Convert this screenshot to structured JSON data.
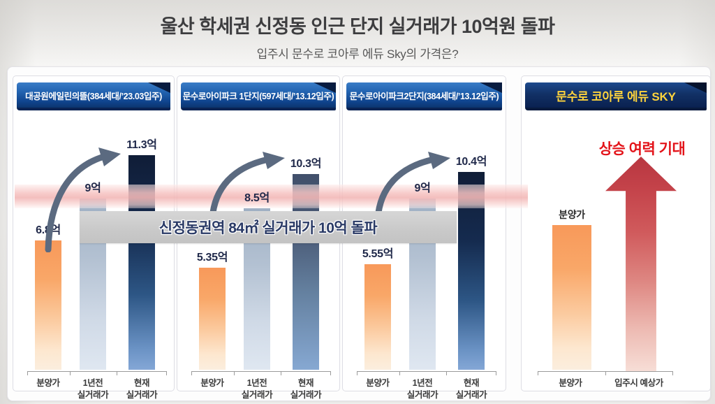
{
  "page": {
    "title": "울산 학세권 신정동 인근 단지 실거래가 10억원 돌파",
    "subtitle": "입주시 문수로 코아루 에듀 Sky의 가격은?"
  },
  "banner": {
    "text": "신정동권역 84㎡ 실거래가 10억 돌파"
  },
  "colors": {
    "ribbon_blue": "#1c5aa8",
    "ribbon_navy": "#0a2150",
    "ribbon_text": "#ffffff",
    "sky_header_text": "#ffd43c",
    "bar_orange": "#f8995a",
    "bar_lightblue": "#9fb0c4",
    "bar_navy": "#14294d",
    "band_pink": "#f3b9b8",
    "banner_gray": "#c9c9c9",
    "banner_text": "#2a3a66",
    "swoosh_arrow_gray": "#5b6a80",
    "up_arrow_red": "#c4434a",
    "rise_text_red": "#e31319"
  },
  "panels": [
    {
      "header": "대공원에일린의뜰(384세대/’23.03입주)",
      "bars": [
        {
          "value_label": "6.8억",
          "category": "분양가"
        },
        {
          "value_label": "9억",
          "category": "1년전\n실거래가"
        },
        {
          "value_label": "11.3억",
          "category": "현재\n실거래가"
        }
      ]
    },
    {
      "header": "문수로아이파크 1단지(597세대/’13.12입주)",
      "bars": [
        {
          "value_label": "5.35억",
          "category": "분양가"
        },
        {
          "value_label": "8.5억",
          "category": "1년전\n실거래가"
        },
        {
          "value_label": "10.3억",
          "category": "현재\n실거래가"
        }
      ]
    },
    {
      "header": "문수로아이파크2단지(384세대/’13.12입주)",
      "bars": [
        {
          "value_label": "5.55억",
          "category": "분양가"
        },
        {
          "value_label": "9억",
          "category": "1년전\n실거래가"
        },
        {
          "value_label": "10.4억",
          "category": "현재\n실거래가"
        }
      ]
    },
    {
      "header": "문수로 코아루 에듀 SKY",
      "rise_label": "상승 여력 기대",
      "bars": [
        {
          "value_label": "분양가",
          "category": "분양가"
        },
        {
          "category": "입주시 예상가"
        }
      ]
    }
  ],
  "chart_data": [
    {
      "type": "bar",
      "title": "대공원에일린의뜰(384세대/’23.03입주)",
      "categories": [
        "분양가",
        "1년전 실거래가",
        "현재 실거래가"
      ],
      "values": [
        6.8,
        9,
        11.3
      ],
      "value_labels": [
        "6.8억",
        "9억",
        "11.3억"
      ],
      "unit": "억원",
      "ylim": [
        0,
        12
      ],
      "annotation": "상승 곡선 화살표(분양가→현재 실거래가)"
    },
    {
      "type": "bar",
      "title": "문수로아이파크 1단지(597세대/’13.12입주)",
      "categories": [
        "분양가",
        "1년전 실거래가",
        "현재 실거래가"
      ],
      "values": [
        5.35,
        8.5,
        10.3
      ],
      "value_labels": [
        "5.35억",
        "8.5억",
        "10.3억"
      ],
      "unit": "억원",
      "ylim": [
        0,
        12
      ],
      "annotation": "상승 곡선 화살표(분양가→현재 실거래가)"
    },
    {
      "type": "bar",
      "title": "문수로아이파크2단지(384세대/’13.12입주)",
      "categories": [
        "분양가",
        "1년전 실거래가",
        "현재 실거래가"
      ],
      "values": [
        5.55,
        9,
        10.4
      ],
      "value_labels": [
        "5.55억",
        "9억",
        "10.4억"
      ],
      "unit": "억원",
      "ylim": [
        0,
        12
      ],
      "annotation": "상승 곡선 화살표(분양가→현재 실거래가)"
    },
    {
      "type": "bar",
      "title": "문수로 코아루 에듀 SKY",
      "categories": [
        "분양가",
        "입주시 예상가"
      ],
      "values": [
        null,
        null
      ],
      "value_labels": [
        "분양가",
        null
      ],
      "unit": "억원",
      "ylim": [
        0,
        12
      ],
      "annotation": "상승 여력 기대 (붉은 상승 화살표)"
    }
  ]
}
